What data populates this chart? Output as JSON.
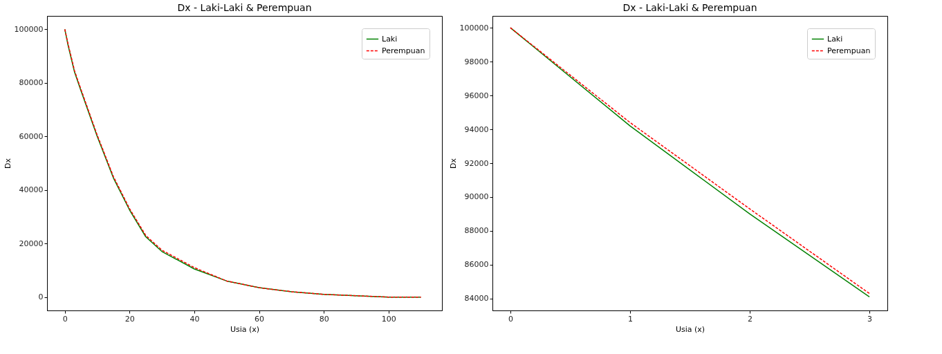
{
  "chart_data": [
    {
      "type": "line",
      "title": "Dx - Laki-Laki & Perempuan",
      "xlabel": "Usia (x)",
      "ylabel": "Dx",
      "xlim": [
        -5.5,
        116.5
      ],
      "xticks": [
        0,
        20,
        40,
        60,
        80,
        100
      ],
      "ylim": [
        -5000,
        105000
      ],
      "yticks": [
        0,
        20000,
        40000,
        60000,
        80000,
        100000
      ],
      "legend": "top right",
      "grid": false,
      "x": [
        0,
        1,
        2,
        3,
        5,
        10,
        15,
        20,
        25,
        30,
        40,
        50,
        60,
        70,
        80,
        90,
        100,
        110
      ],
      "series": [
        {
          "name": "Laki",
          "color": "#008000",
          "line_style": "solid",
          "values": [
            100000,
            94000,
            89000,
            84000,
            77000,
            60000,
            44500,
            32500,
            22500,
            17000,
            10500,
            6000,
            3500,
            2000,
            1000,
            500,
            0,
            0
          ]
        },
        {
          "name": "Perempuan",
          "color": "#ff0000",
          "line_style": "dashed",
          "values": [
            100000,
            94500,
            89500,
            84500,
            77500,
            60500,
            45000,
            33000,
            23000,
            17500,
            11000,
            6000,
            3500,
            2000,
            1000,
            500,
            0,
            0
          ]
        }
      ]
    },
    {
      "type": "line",
      "title": "Dx - Laki-Laki & Perempuan",
      "xlabel": "Usia (x)",
      "ylabel": "Dx",
      "xlim": [
        -0.15,
        3.15
      ],
      "xticks": [
        0,
        1,
        2,
        3
      ],
      "ylim": [
        83300,
        100700
      ],
      "yticks": [
        84000,
        86000,
        88000,
        90000,
        92000,
        94000,
        96000,
        98000,
        100000
      ],
      "legend": "top right",
      "grid": false,
      "x": [
        0,
        1,
        2,
        3
      ],
      "series": [
        {
          "name": "Laki",
          "color": "#008000",
          "line_style": "solid",
          "values": [
            100000,
            94200,
            89000,
            84100
          ]
        },
        {
          "name": "Perempuan",
          "color": "#ff0000",
          "line_style": "dashed",
          "values": [
            100000,
            94400,
            89300,
            84300
          ]
        }
      ]
    }
  ]
}
